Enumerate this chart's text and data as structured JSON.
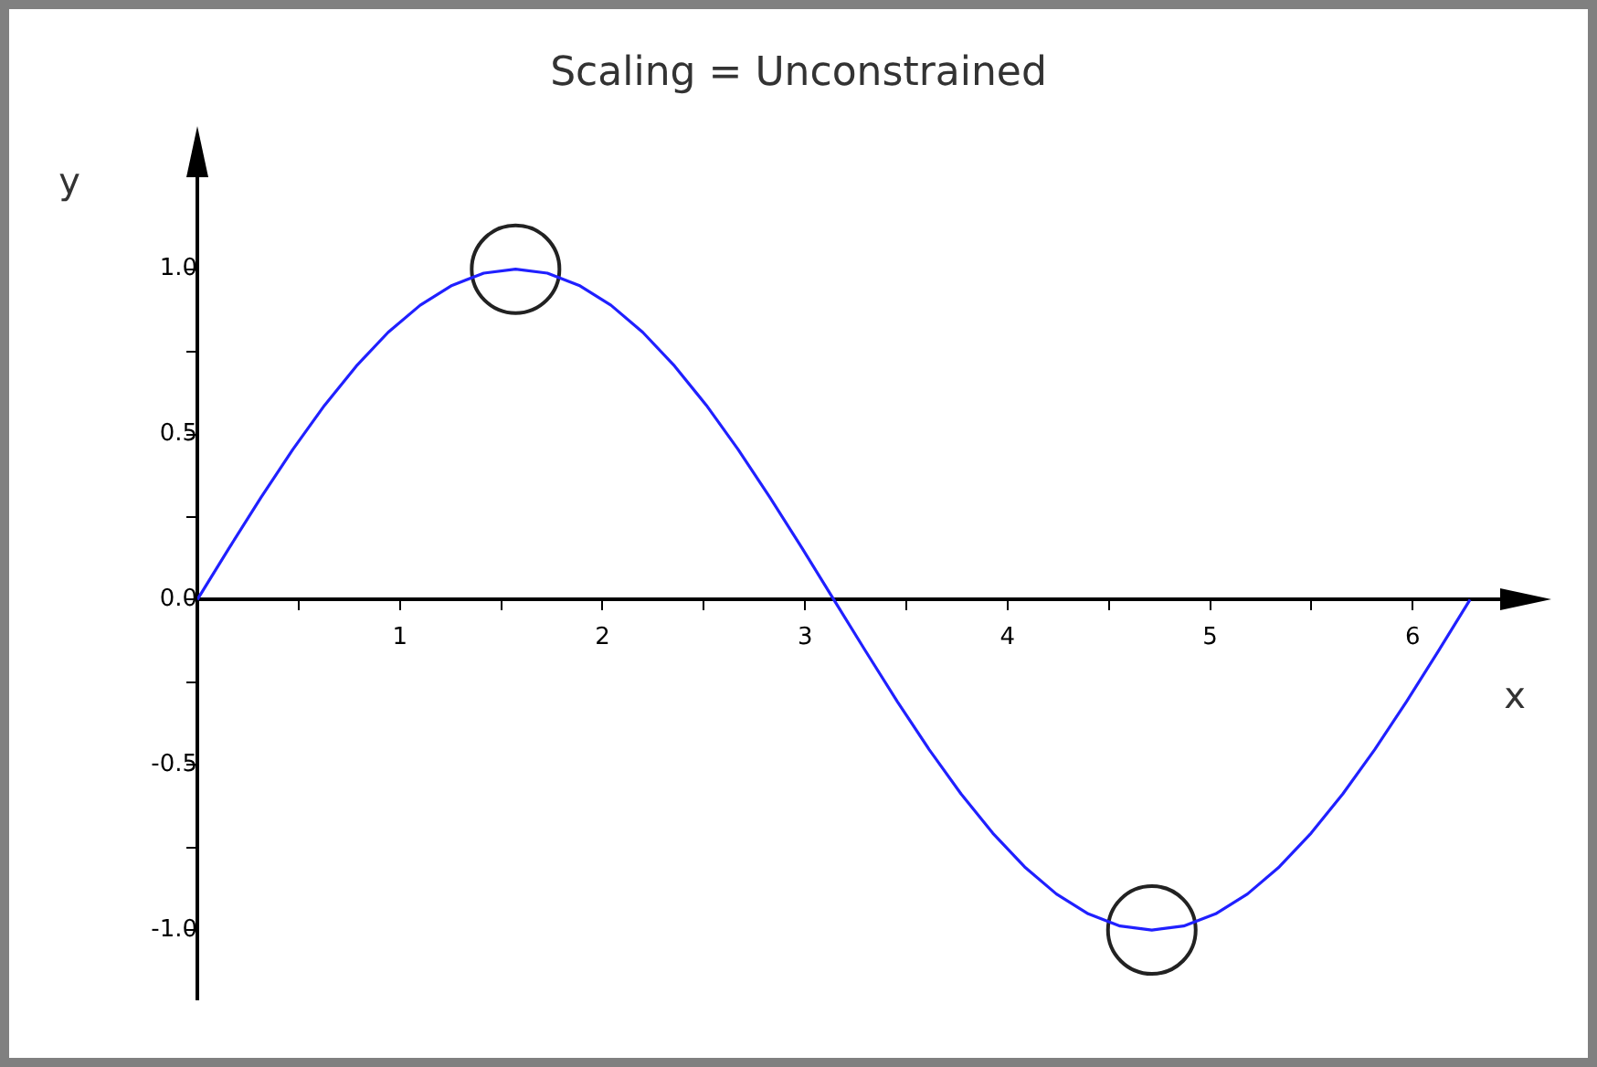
{
  "chart_data": {
    "type": "line",
    "title": "Scaling = Unconstrained",
    "xlabel": "x",
    "ylabel": "y",
    "xlim": [
      0,
      6.63
    ],
    "ylim": [
      -1.21,
      1.4
    ],
    "xticks": [
      {
        "value": 0.5,
        "label": null
      },
      1,
      {
        "value": 1.5,
        "label": null
      },
      2,
      {
        "value": 2.5,
        "label": null
      },
      3,
      {
        "value": 3.5,
        "label": null
      },
      4,
      {
        "value": 4.5,
        "label": null
      },
      5,
      {
        "value": 5.5,
        "label": null
      },
      6
    ],
    "yticks": [
      {
        "value": -1,
        "label": "-1.0"
      },
      {
        "value": -0.75,
        "label": null
      },
      {
        "value": -0.5,
        "label": "-0.5"
      },
      {
        "value": -0.25,
        "label": null
      },
      {
        "value": 0,
        "label": "0.0"
      },
      {
        "value": 0.25,
        "label": null
      },
      {
        "value": 0.5,
        "label": "0.5"
      },
      {
        "value": 0.75,
        "label": null
      },
      {
        "value": 1,
        "label": "1.0"
      }
    ],
    "grid": false,
    "legend": false,
    "marker": "none",
    "line_style": "solid",
    "series": [
      {
        "color": "#2020ff",
        "x": [
          0,
          0.157,
          0.314,
          0.471,
          0.628,
          0.785,
          0.942,
          1.1,
          1.257,
          1.414,
          1.571,
          1.728,
          1.885,
          2.042,
          2.199,
          2.356,
          2.513,
          2.67,
          2.827,
          2.985,
          3.142,
          3.299,
          3.456,
          3.613,
          3.77,
          3.927,
          4.084,
          4.241,
          4.398,
          4.555,
          4.712,
          4.869,
          5.027,
          5.184,
          5.341,
          5.498,
          5.655,
          5.812,
          5.969,
          6.126,
          6.283
        ],
        "values": [
          0,
          0.156,
          0.309,
          0.454,
          0.588,
          0.707,
          0.809,
          0.891,
          0.951,
          0.988,
          1,
          0.988,
          0.951,
          0.891,
          0.809,
          0.707,
          0.588,
          0.454,
          0.309,
          0.156,
          0,
          -0.156,
          -0.309,
          -0.454,
          -0.588,
          -0.707,
          -0.809,
          -0.891,
          -0.951,
          -0.988,
          -1,
          -0.988,
          -0.951,
          -0.891,
          -0.809,
          -0.707,
          -0.588,
          -0.454,
          -0.309,
          -0.156,
          0
        ]
      },
      {
        "type": "scatter",
        "marker": "circle",
        "color": "#222222",
        "x": [
          1.571,
          4.712
        ],
        "values": [
          1,
          -1
        ]
      }
    ]
  }
}
